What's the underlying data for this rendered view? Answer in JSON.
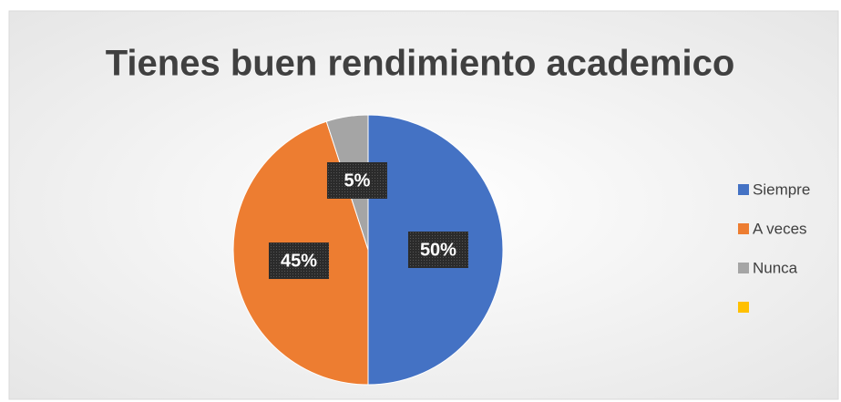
{
  "chart_data": {
    "type": "pie",
    "title": "Tienes buen rendimiento academico",
    "categories": [
      "Siempre",
      "A veces",
      "Nunca",
      null
    ],
    "values": [
      50,
      45,
      5,
      0
    ],
    "value_labels": [
      "50%",
      "45%",
      "5%",
      null
    ],
    "colors": [
      "#4472c4",
      "#ed7d31",
      "#a5a5a5",
      "#ffc000"
    ],
    "legend": "right"
  }
}
